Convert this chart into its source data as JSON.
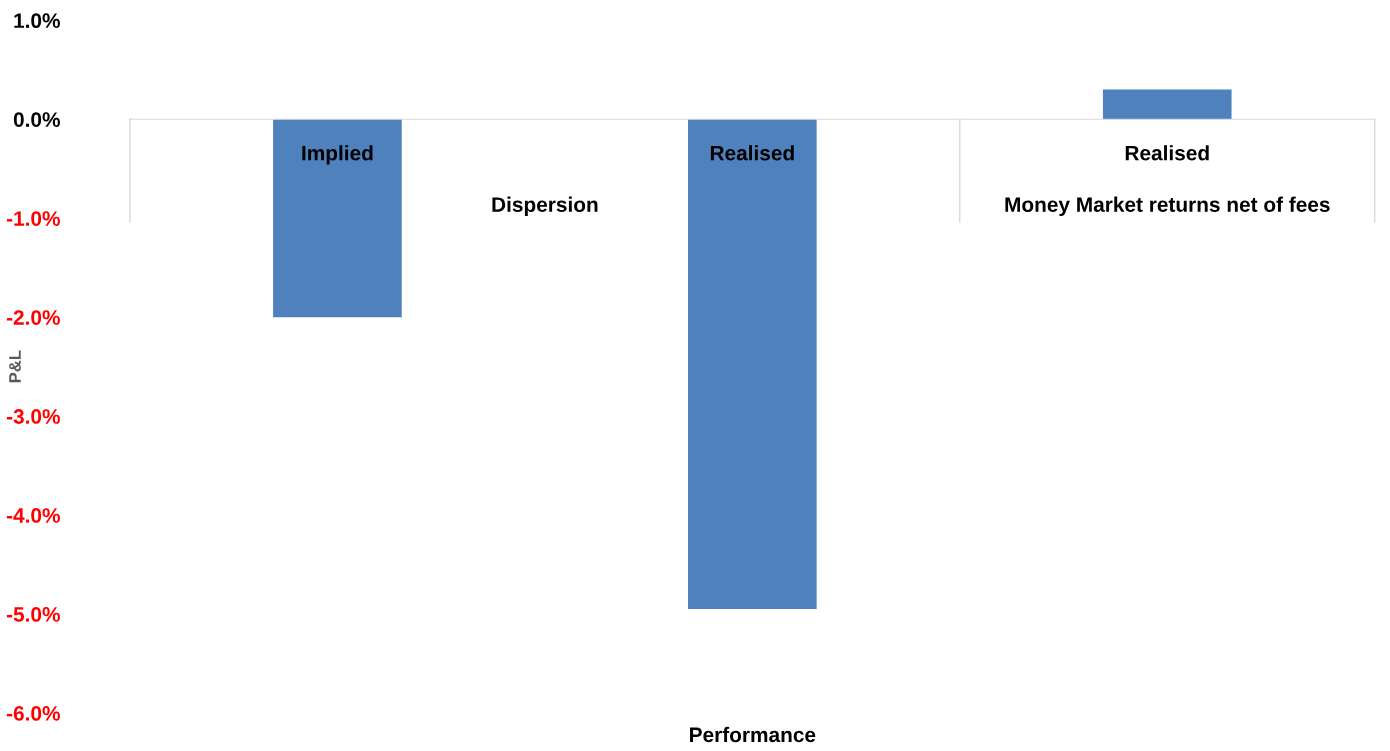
{
  "chart_data": {
    "type": "bar",
    "xlabel": "Performance",
    "ylabel": "P&L",
    "categories": [
      "Implied",
      "Realised",
      "Realised"
    ],
    "values": [
      -2.0,
      -4.95,
      0.3
    ],
    "color": "#4f81bd",
    "annotations": [
      "Dispersion",
      "Money Market returns net of fees"
    ],
    "ylim": [
      -6,
      1
    ],
    "yticks": [
      {
        "value": 1,
        "label": "1.0%"
      },
      {
        "value": 0,
        "label": "0.0%"
      },
      {
        "value": -1,
        "label": "-1.0%"
      },
      {
        "value": -2,
        "label": "-2.0%"
      },
      {
        "value": -3,
        "label": "-3.0%"
      },
      {
        "value": -4,
        "label": "-4.0%"
      },
      {
        "value": -5,
        "label": "-5.0%"
      },
      {
        "value": -6,
        "label": "-6.0%"
      }
    ],
    "grid": false,
    "legend": false
  }
}
